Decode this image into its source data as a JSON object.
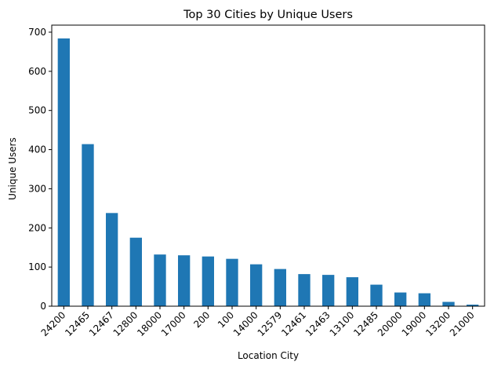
{
  "chart_data": {
    "type": "bar",
    "title": "Top 30 Cities by Unique Users",
    "xlabel": "Location City",
    "ylabel": "Unique Users",
    "categories": [
      "24200",
      "12465",
      "12467",
      "12800",
      "18000",
      "17000",
      "200",
      "100",
      "14000",
      "12579",
      "12461",
      "12463",
      "13100",
      "12485",
      "20000",
      "19000",
      "13200",
      "21000"
    ],
    "values": [
      684,
      414,
      238,
      175,
      132,
      130,
      127,
      121,
      107,
      95,
      82,
      80,
      74,
      55,
      35,
      33,
      11,
      4
    ],
    "ylim": [
      0,
      718
    ],
    "yticks": [
      0,
      100,
      200,
      300,
      400,
      500,
      600,
      700
    ],
    "grid": false,
    "bar_color": "#1f77b4"
  }
}
